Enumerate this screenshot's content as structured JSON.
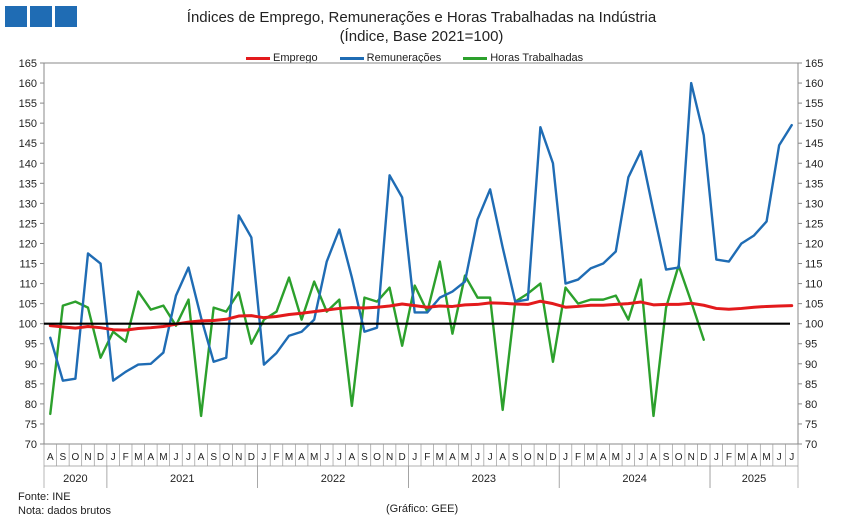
{
  "header": {
    "title": "Índices de Emprego, Remunerações e Horas Trabalhadas na Indústria",
    "subtitle": "(Índice, Base 2021=100)"
  },
  "footer": {
    "source": "Fonte: INE",
    "note": "Nota: dados brutos",
    "credit": "(Gráfico: GEE)"
  },
  "chart_data": {
    "type": "line",
    "title": "Índices de Emprego, Remunerações e Horas Trabalhadas na Indústria",
    "subtitle": "(Índice, Base 2021=100)",
    "ylim": [
      70,
      165
    ],
    "yticks": [
      70,
      75,
      80,
      85,
      90,
      95,
      100,
      105,
      110,
      115,
      120,
      125,
      130,
      135,
      140,
      145,
      150,
      155,
      160,
      165
    ],
    "y_axis_both_sides": true,
    "reference_line": 100,
    "legend_position": "top",
    "months": [
      "A",
      "S",
      "O",
      "N",
      "D",
      "J",
      "F",
      "M",
      "A",
      "M",
      "J",
      "J",
      "A",
      "S",
      "O",
      "N",
      "D",
      "J",
      "F",
      "M",
      "A",
      "M",
      "J",
      "J",
      "A",
      "S",
      "O",
      "N",
      "D",
      "J",
      "F",
      "M",
      "A",
      "M",
      "J",
      "J",
      "A",
      "S",
      "O",
      "N",
      "D",
      "J",
      "F",
      "M",
      "A",
      "M",
      "J",
      "J",
      "A",
      "S",
      "O",
      "N",
      "D",
      "J",
      "F",
      "M",
      "A",
      "M",
      "J",
      "J"
    ],
    "years": [
      {
        "label": "2020",
        "start": 0,
        "end": 4
      },
      {
        "label": "2021",
        "start": 5,
        "end": 16
      },
      {
        "label": "2022",
        "start": 17,
        "end": 28
      },
      {
        "label": "2023",
        "start": 29,
        "end": 40
      },
      {
        "label": "2024",
        "start": 41,
        "end": 52
      },
      {
        "label": "2025",
        "start": 53,
        "end": 59
      }
    ],
    "series": [
      {
        "name": "Emprego",
        "color": "#e31a1c",
        "values": [
          99.5,
          99.2,
          98.9,
          99.3,
          99.0,
          98.5,
          98.4,
          98.8,
          99.0,
          99.3,
          99.9,
          100.4,
          100.7,
          100.8,
          101.1,
          101.9,
          102.0,
          101.5,
          101.8,
          102.3,
          102.6,
          103.0,
          103.4,
          103.8,
          104.0,
          103.9,
          104.1,
          104.4,
          104.9,
          104.5,
          104.1,
          104.4,
          104.3,
          104.7,
          104.8,
          105.2,
          105.1,
          104.9,
          104.8,
          105.6,
          105.0,
          104.1,
          104.3,
          104.6,
          104.6,
          104.8,
          105.0,
          105.4,
          104.7,
          104.8,
          104.8,
          105.1,
          104.6,
          103.8,
          103.6,
          103.8,
          104.1,
          104.3,
          104.4,
          104.5
        ]
      },
      {
        "name": "Remunerações",
        "color": "#1f6cb4",
        "values": [
          96.5,
          85.8,
          86.3,
          117.5,
          115.0,
          85.8,
          88.0,
          89.8,
          90.0,
          92.8,
          107.0,
          114.0,
          101.5,
          90.5,
          91.5,
          127.0,
          121.5,
          89.8,
          92.7,
          97.0,
          98.0,
          101.0,
          115.5,
          123.5,
          111.5,
          98.0,
          99.0,
          137.0,
          131.5,
          102.8,
          102.8,
          106.5,
          108.0,
          110.5,
          126.0,
          133.5,
          119.0,
          105.5,
          106.0,
          149.0,
          140.0,
          110.0,
          111.0,
          113.8,
          115.0,
          118.0,
          136.5,
          143.0,
          128.0,
          113.5,
          114.0,
          160.0,
          147.0,
          116.0,
          115.5,
          120.0,
          122.0,
          125.5,
          144.5,
          149.5
        ]
      },
      {
        "name": "Horas Trabalhadas",
        "color": "#2ca02c",
        "values": [
          77.5,
          104.5,
          105.5,
          104.0,
          91.5,
          98.0,
          95.5,
          108.0,
          103.5,
          104.5,
          99.5,
          106.0,
          77.0,
          104.0,
          103.0,
          107.8,
          95.0,
          101.0,
          103.0,
          111.5,
          101.0,
          110.5,
          103.0,
          106.0,
          79.5,
          106.5,
          105.5,
          109.0,
          94.5,
          109.5,
          103.0,
          115.5,
          97.5,
          112.0,
          106.5,
          106.5,
          78.5,
          105.5,
          107.5,
          110.0,
          90.5,
          109.0,
          105.0,
          106.0,
          106.0,
          107.0,
          101.0,
          111.0,
          77.0,
          104.0,
          114.5,
          105.5,
          96.0,
          null,
          null,
          null,
          null,
          null,
          null,
          null
        ]
      }
    ]
  }
}
